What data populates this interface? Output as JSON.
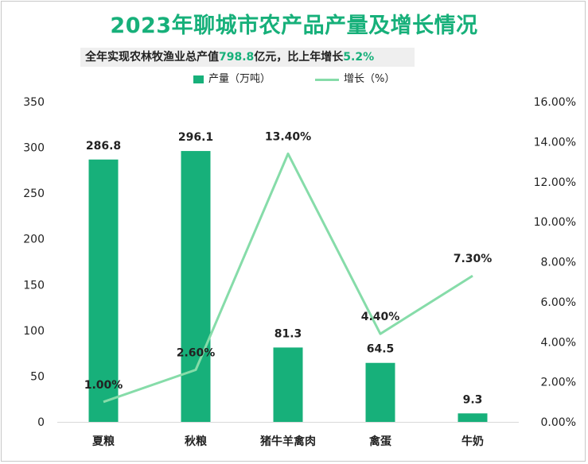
{
  "title": "2023年聊城市农产品产量及增长情况",
  "subtitle": {
    "prefix": "全年实现农林牧渔业总产值",
    "value1": "798.8",
    "middle": "亿元，比上年增长",
    "value2": "5.2%"
  },
  "colors": {
    "bar": "#17b07a",
    "line": "#86dca9",
    "title": "#17b07a"
  },
  "chart_data": {
    "type": "bar+line",
    "categories": [
      "夏粮",
      "秋粮",
      "猪牛羊禽肉",
      "禽蛋",
      "牛奶"
    ],
    "series": [
      {
        "name": "产量（万吨）",
        "type": "bar",
        "axis": "left",
        "values": [
          286.8,
          296.1,
          81.3,
          64.5,
          9.3
        ],
        "labels": [
          "286.8",
          "296.1",
          "81.3",
          "64.5",
          "9.3"
        ]
      },
      {
        "name": "增长（%）",
        "type": "line",
        "axis": "right",
        "values": [
          1.0,
          2.6,
          13.4,
          4.4,
          7.3
        ],
        "labels": [
          "1.00%",
          "2.60%",
          "13.40%",
          "4.40%",
          "7.30%"
        ]
      }
    ],
    "y_left": {
      "min": 0,
      "max": 350,
      "step": 50,
      "ticks": [
        "0",
        "50",
        "100",
        "150",
        "200",
        "250",
        "300",
        "350"
      ]
    },
    "y_right": {
      "min": 0,
      "max": 16,
      "step": 2,
      "ticks": [
        "0.00%",
        "2.00%",
        "4.00%",
        "6.00%",
        "8.00%",
        "10.00%",
        "12.00%",
        "14.00%",
        "16.00%"
      ]
    },
    "grid": false,
    "legend_position": "top-center"
  }
}
